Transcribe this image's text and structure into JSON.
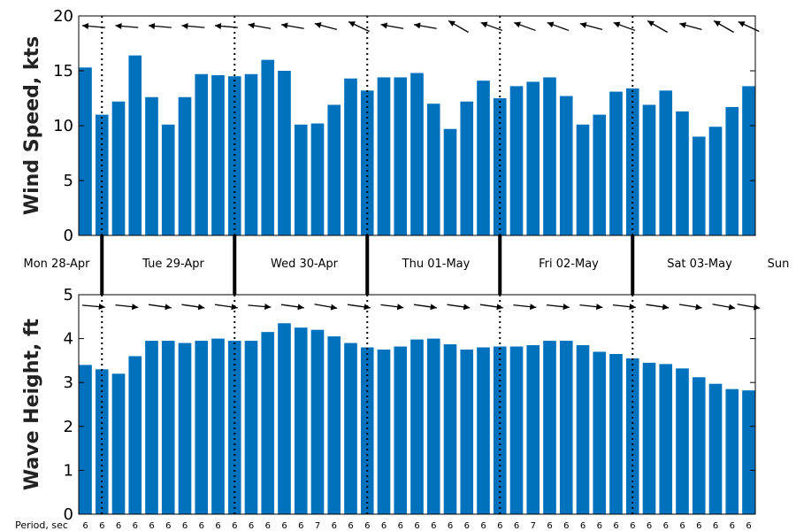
{
  "colors": {
    "bar": "#0072bd",
    "axis": "#000000",
    "arrow": "#000000"
  },
  "chart_data": [
    {
      "type": "bar",
      "ylabel": "Wind Speed, kts",
      "ylim": [
        0,
        20
      ],
      "yticks": [
        "0",
        "5",
        "10",
        "15",
        "20"
      ],
      "values": [
        15.3,
        11.0,
        12.2,
        16.4,
        12.6,
        10.1,
        12.6,
        14.7,
        14.6,
        14.5,
        14.7,
        16.0,
        15.0,
        10.1,
        10.2,
        11.9,
        14.3,
        13.2,
        14.4,
        14.4,
        14.8,
        12.0,
        9.7,
        12.2,
        14.1,
        12.5,
        13.6,
        14.0,
        14.4,
        12.7,
        10.1,
        11.0,
        13.1,
        13.4,
        11.9,
        13.2,
        11.3,
        9.0,
        9.9,
        11.7,
        13.6
      ],
      "direction_arrows": "wind direction arrows, mostly pointing west to west-northwest"
    },
    {
      "type": "bar",
      "ylabel": "Wave Height, ft",
      "ylim": [
        0,
        5
      ],
      "yticks": [
        "0",
        "1",
        "2",
        "3",
        "4",
        "5"
      ],
      "values": [
        3.4,
        3.3,
        3.2,
        3.6,
        3.95,
        3.95,
        3.9,
        3.95,
        4.0,
        3.95,
        3.95,
        4.15,
        4.35,
        4.25,
        4.2,
        4.05,
        3.9,
        3.8,
        3.75,
        3.82,
        3.98,
        4.0,
        3.87,
        3.75,
        3.8,
        3.82,
        3.82,
        3.85,
        3.95,
        3.95,
        3.85,
        3.7,
        3.65,
        3.55,
        3.45,
        3.42,
        3.32,
        3.12,
        2.97,
        2.85,
        2.82
      ],
      "direction_arrows": "wave direction arrows, mostly pointing east",
      "period_label": "Period, sec",
      "periods": [
        "6",
        "6",
        "6",
        "6",
        "6",
        "6",
        "6",
        "6",
        "6",
        "6",
        "6",
        "6",
        "6",
        "6",
        "7",
        "6",
        "6",
        "6",
        "6",
        "6",
        "6",
        "6",
        "6",
        "6",
        "6",
        "6",
        "6",
        "7",
        "6",
        "6",
        "6",
        "6",
        "6",
        "6",
        "6",
        "6",
        "6",
        "6",
        "6",
        "6",
        "6"
      ]
    }
  ],
  "days": [
    "Mon 28-Apr",
    "Tue 29-Apr",
    "Wed 30-Apr",
    "Thu 01-May",
    "Fri 02-May",
    "Sat 03-May",
    "Sun"
  ]
}
